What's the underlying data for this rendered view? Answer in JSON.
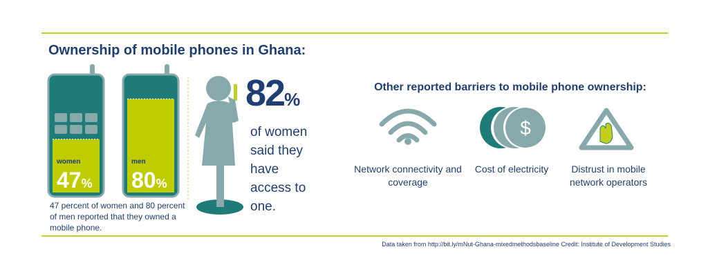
{
  "title": "Ownership of mobile phones in Ghana:",
  "phones": [
    {
      "label": "women",
      "value": 47
    },
    {
      "label": "men",
      "value": 80
    }
  ],
  "percent_sign": "%",
  "phones_caption": "47 percent of women and 80 percent of men reported that they owned a mobile phone.",
  "access": {
    "value": 82,
    "text": "of women said they have access to one."
  },
  "barriers": {
    "title": "Other reported barriers to mobile phone ownership:",
    "coin_symbol": "$",
    "items": [
      "Network connectivity and coverage",
      "Cost of electricity",
      "Distrust in mobile network operators"
    ]
  },
  "source": "Data taken from http://bit.ly/mNut-Ghana-mixedmethodsbaseline Credit: Institute of Development Studies"
}
